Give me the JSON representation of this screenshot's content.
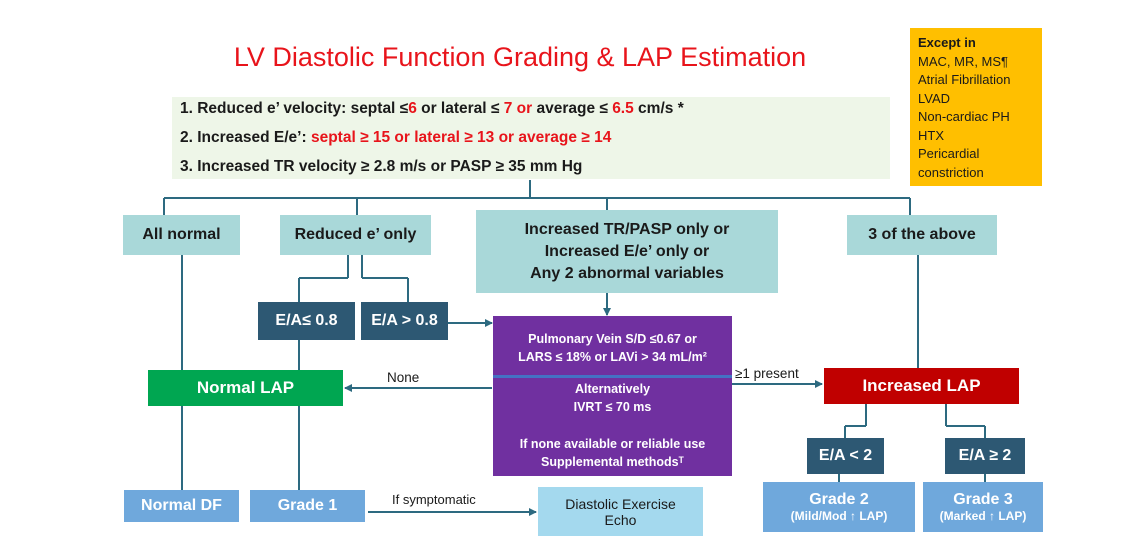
{
  "title": "LV Diastolic Function Grading & LAP Estimation",
  "criteria": {
    "c1": {
      "pre": "1. Reduced e’ velocity:  septal ≤",
      "v1": "6",
      "mid1": "  or lateral ≤ ",
      "v2": "7",
      "mid2": " ",
      "or": "or",
      "mid3": " average ≤ ",
      "v3": "6.5",
      "post": " cm/s *"
    },
    "c2": {
      "pre": "2. Increased E/e’: ",
      "red": "septal ≥ 15 or lateral ≥ 13 or average ≥ 14"
    },
    "c3": {
      "text": "3. Increased TR velocity ≥ 2.8 m/s or PASP ≥ 35 mm Hg"
    }
  },
  "exceptions": {
    "heading": "Except in",
    "items": [
      "MAC, MR, MS¶",
      "Atrial Fibrillation",
      "LVAD",
      "Non-cardiac PH",
      "HTX",
      "Pericardial",
      "constriction"
    ]
  },
  "categories": {
    "all_normal": "All normal",
    "reduced_e": "Reduced e’ only",
    "increased_line1": "Increased TR/PASP only or",
    "increased_line2": "Increased E/e’ only or",
    "increased_line3": "Any 2 abnormal variables",
    "three_above": "3 of the above"
  },
  "ratios": {
    "ea_low": "E/A≤ 0.8",
    "ea_high": "E/A > 0.8",
    "ea_lt2": "E/A <  2",
    "ea_ge2": "E/A ≥ 2"
  },
  "assessment": {
    "line1": "Pulmonary Vein S/D ≤0.67 or",
    "line2": "LARS ≤ 18% or LAVi > 34 mL/m²",
    "line3": "Alternatively",
    "line4": "IVRT  ≤ 70 ms",
    "line5": "If none available or reliable use",
    "line6": "Supplemental methodsᵀ"
  },
  "edges": {
    "none": "None",
    "present": "≥1 present",
    "symptomatic": "If symptomatic"
  },
  "outcomes": {
    "normal_lap": "Normal LAP",
    "increased_lap": "Increased LAP",
    "normal_df": "Normal DF",
    "grade1": "Grade 1",
    "echo_line1": "Diastolic Exercise",
    "echo_line2": "Echo",
    "grade2": "Grade 2",
    "grade2_sub": "(Mild/Mod ↑ LAP)",
    "grade3": "Grade 3",
    "grade3_sub": "(Marked ↑ LAP)"
  },
  "colors": {
    "title": "#e8141b",
    "connector": "#2d6a80",
    "purple": "#7030a0",
    "green": "#00a651",
    "darkred": "#c00000",
    "navy": "#2d5873",
    "teal": "#a9d8d9",
    "blue": "#6fa8dc",
    "amber": "#ffbf00"
  }
}
